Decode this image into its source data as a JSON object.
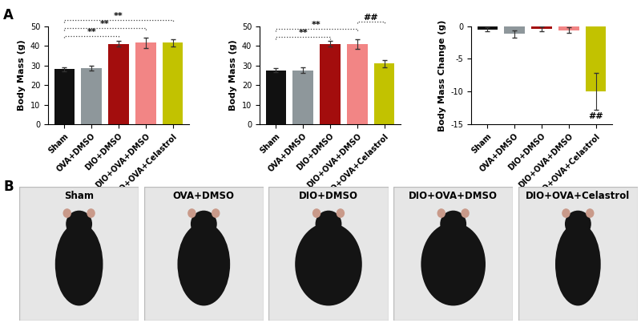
{
  "panel_labels": [
    "A",
    "B"
  ],
  "chart_data": [
    {
      "type": "bar",
      "categories": [
        "Sham",
        "OVA+DMSO",
        "DIO+DMSO",
        "DIO+OVA+DMSO",
        "DIO+OVA+Celastrol"
      ],
      "values": [
        28,
        28.5,
        41,
        41.5,
        41.5
      ],
      "errors": [
        1,
        1.2,
        1.5,
        2.5,
        2
      ],
      "colors": [
        "#111111",
        "#8e979b",
        "#a30d0d",
        "#f28585",
        "#c2c200"
      ],
      "y_label": "Body Mass (g)",
      "ylim": [
        0,
        50
      ],
      "yticks": [
        0,
        10,
        20,
        30,
        40,
        50
      ],
      "annotations": [
        {
          "text": "**",
          "between": [
            "Sham",
            "DIO+DMSO"
          ]
        },
        {
          "text": "**",
          "between": [
            "Sham",
            "DIO+OVA+DMSO"
          ]
        },
        {
          "text": "**",
          "between": [
            "Sham",
            "DIO+OVA+Celastrol"
          ]
        }
      ]
    },
    {
      "type": "bar",
      "categories": [
        "Sham",
        "OVA+DMSO",
        "DIO+DMSO",
        "DIO+OVA+DMSO",
        "DIO+OVA+Celastrol"
      ],
      "values": [
        27.5,
        27.5,
        41,
        41,
        31
      ],
      "errors": [
        1,
        1.5,
        1.5,
        2.5,
        1.8
      ],
      "colors": [
        "#111111",
        "#8e979b",
        "#a30d0d",
        "#f28585",
        "#c2c200"
      ],
      "y_label": "Body Mass (g)",
      "ylim": [
        0,
        50
      ],
      "yticks": [
        0,
        10,
        20,
        30,
        40,
        50
      ],
      "annotations": [
        {
          "text": "**",
          "between": [
            "Sham",
            "DIO+DMSO"
          ]
        },
        {
          "text": "**",
          "between": [
            "Sham",
            "DIO+OVA+DMSO"
          ]
        },
        {
          "text": "##",
          "between": [
            "DIO+OVA+DMSO",
            "DIO+OVA+Celastrol"
          ]
        }
      ]
    },
    {
      "type": "bar",
      "categories": [
        "Sham",
        "OVA+DMSO",
        "DIO+DMSO",
        "DIO+OVA+DMSO",
        "DIO+OVA+Celastrol"
      ],
      "values": [
        -0.5,
        -1.2,
        -0.4,
        -0.6,
        -10
      ],
      "errors": [
        0.3,
        0.5,
        0.4,
        0.4,
        2.8
      ],
      "colors": [
        "#111111",
        "#8e979b",
        "#a30d0d",
        "#f28585",
        "#c2c200"
      ],
      "y_label": "Body Mass Change (g)",
      "ylim": [
        -15,
        0
      ],
      "yticks": [
        -15,
        -10,
        -5,
        0
      ],
      "annotations": [
        {
          "text": "##",
          "category": "DIO+OVA+Celastrol"
        }
      ]
    }
  ],
  "photos": {
    "labels": [
      "Sham",
      "OVA+DMSO",
      "DIO+DMSO",
      "DIO+OVA+DMSO",
      "DIO+OVA+Celastrol"
    ]
  }
}
